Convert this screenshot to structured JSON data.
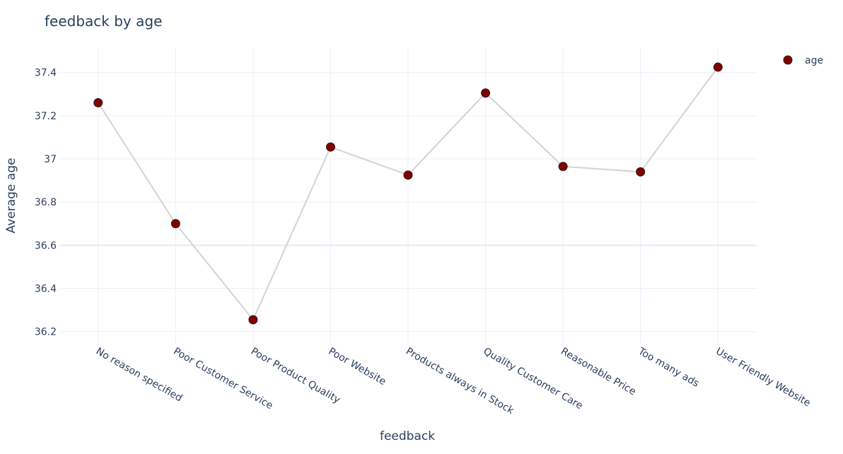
{
  "chart_data": {
    "type": "line",
    "title": "feedback by age",
    "xlabel": "feedback",
    "ylabel": "Average age",
    "categories": [
      "No reason specified",
      "Poor Customer Service",
      "Poor Product Quality",
      "Poor Website",
      "Products always in Stock",
      "Quality Customer Care",
      "Reasonable Price",
      "Too many ads",
      "User Friendly Website"
    ],
    "series": [
      {
        "name": "age",
        "values": [
          37.26,
          36.7,
          36.255,
          37.055,
          36.925,
          37.305,
          36.965,
          36.94,
          37.425
        ]
      }
    ],
    "ylim": [
      36.14,
      37.52
    ],
    "yticks": [
      36.2,
      36.4,
      36.6,
      36.8,
      37,
      37.2,
      37.4
    ],
    "ytick_labels": [
      "36.2",
      "36.4",
      "36.6",
      "36.8",
      "37",
      "37.2",
      "37.4"
    ],
    "grid": true,
    "legend_position": "top-right",
    "colors": {
      "marker_fill": "#800000",
      "marker_stroke": "#2a1a1a",
      "line": "#d3d3d3",
      "grid": "#ebf0f8",
      "zero_line": "#e5e9f5",
      "text": "#2a3f5f"
    }
  }
}
